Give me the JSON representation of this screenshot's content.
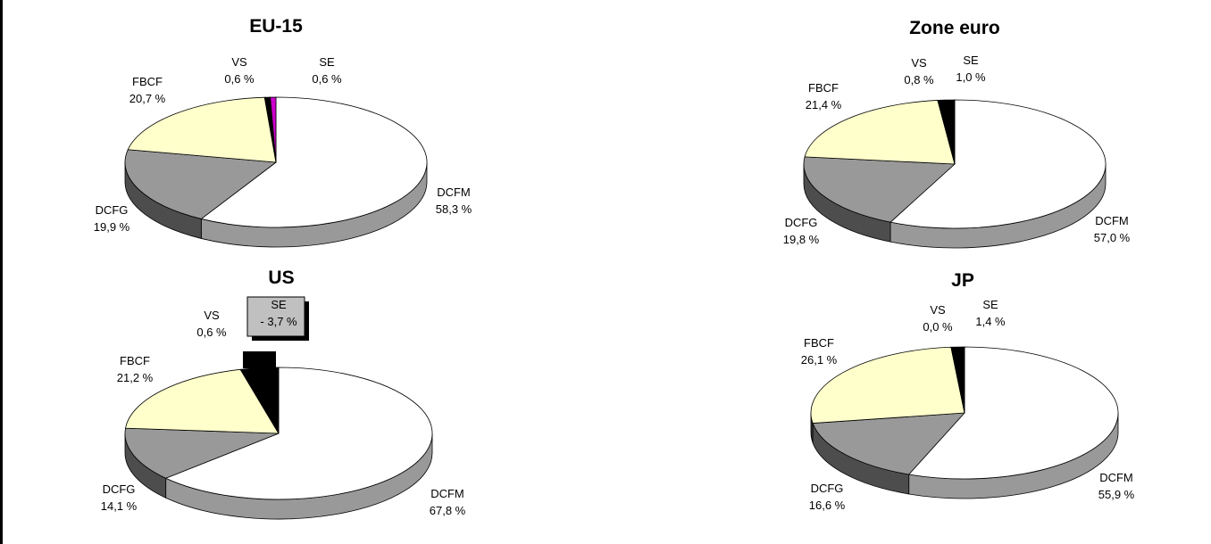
{
  "colors": {
    "DCFM": "#ffffff",
    "DCFG": "#999999",
    "FBCF": "#ffffcc",
    "VS": "#000000",
    "SE_EU15": "#cc00cc",
    "SE": "#000000",
    "DCFM_side": "#999999",
    "DCFG_side": "#4d4d4d",
    "SE_box": "#c0c0c0"
  },
  "chart_data": [
    {
      "type": "pie",
      "title": "EU-15",
      "slices": [
        {
          "key": "DCFM",
          "name": "DCFM",
          "value": 58.3,
          "label": "58,3 %"
        },
        {
          "key": "DCFG",
          "name": "DCFG",
          "value": 19.9,
          "label": "19,9 %"
        },
        {
          "key": "FBCF",
          "name": "FBCF",
          "value": 20.7,
          "label": "20,7 %"
        },
        {
          "key": "VS",
          "name": "VS",
          "value": 0.6,
          "label": "0,6 %"
        },
        {
          "key": "SE",
          "name": "SE",
          "value": 0.6,
          "label": "0,6 %"
        }
      ]
    },
    {
      "type": "pie",
      "title": "Zone euro",
      "slices": [
        {
          "key": "DCFM",
          "name": "DCFM",
          "value": 57.0,
          "label": "57,0 %"
        },
        {
          "key": "DCFG",
          "name": "DCFG",
          "value": 19.8,
          "label": "19,8 %"
        },
        {
          "key": "FBCF",
          "name": "FBCF",
          "value": 21.4,
          "label": "21,4 %"
        },
        {
          "key": "VS",
          "name": "VS",
          "value": 0.8,
          "label": "0,8 %"
        },
        {
          "key": "SE",
          "name": "SE",
          "value": 1.0,
          "label": "1,0 %"
        }
      ]
    },
    {
      "type": "pie",
      "title": "US",
      "slices": [
        {
          "key": "DCFM",
          "name": "DCFM",
          "value": 67.8,
          "label": "67,8 %"
        },
        {
          "key": "DCFG",
          "name": "DCFG",
          "value": 14.1,
          "label": "14,1 %"
        },
        {
          "key": "FBCF",
          "name": "FBCF",
          "value": 21.2,
          "label": "21,2 %"
        },
        {
          "key": "VS",
          "name": "VS",
          "value": 0.6,
          "label": "0,6 %"
        },
        {
          "key": "SE",
          "name": "SE",
          "value": -3.7,
          "label": "- 3,7 %"
        }
      ]
    },
    {
      "type": "pie",
      "title": "JP",
      "slices": [
        {
          "key": "DCFM",
          "name": "DCFM",
          "value": 55.9,
          "label": "55,9 %"
        },
        {
          "key": "DCFG",
          "name": "DCFG",
          "value": 16.6,
          "label": "16,6 %"
        },
        {
          "key": "FBCF",
          "name": "FBCF",
          "value": 26.1,
          "label": "26,1 %"
        },
        {
          "key": "VS",
          "name": "VS",
          "value": 0.0,
          "label": "0,0 %"
        },
        {
          "key": "SE",
          "name": "SE",
          "value": 1.4,
          "label": "1,4 %"
        }
      ]
    }
  ]
}
